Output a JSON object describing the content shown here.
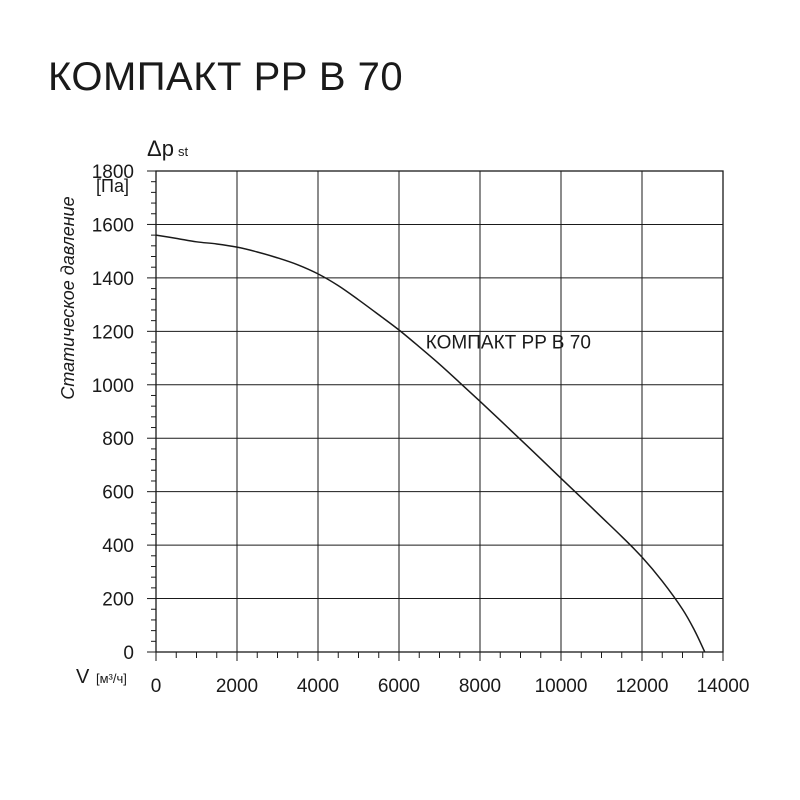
{
  "title": "КОМПАКТ PP B 70",
  "chart_data": {
    "type": "line",
    "title": "КОМПАКТ PP B 70",
    "ylabel_symbol": "Δp",
    "ylabel_subscript": "st",
    "ylabel_unit": "[Па]",
    "ylabel_rotated": "Статическое давление",
    "xlabel_symbol": "V",
    "xlabel_unit": "[м³/ч]",
    "xlim": [
      0,
      14000
    ],
    "ylim": [
      0,
      1800
    ],
    "grid": true,
    "x_ticks": [
      0,
      2000,
      4000,
      6000,
      8000,
      10000,
      12000,
      14000
    ],
    "y_ticks": [
      0,
      200,
      400,
      600,
      800,
      1000,
      1200,
      1400,
      1600,
      1800
    ],
    "x_tick_labels": [
      "0",
      "2000",
      "4000",
      "6000",
      "8000",
      "10000",
      "12000",
      "14000"
    ],
    "y_tick_labels": [
      "0",
      "200",
      "400",
      "600",
      "800",
      "1000",
      "1200",
      "1400",
      "1600",
      "1800"
    ],
    "series": [
      {
        "name": "КОМПАКТ PP B 70",
        "x": [
          0,
          500,
          1000,
          1500,
          2000,
          2500,
          3000,
          3500,
          4000,
          4500,
          5000,
          5500,
          6000,
          6500,
          7000,
          7500,
          8000,
          8500,
          9000,
          9500,
          10000,
          10500,
          11000,
          11500,
          12000,
          12500,
          13000,
          13300,
          13550
        ],
        "y": [
          1560,
          1548,
          1535,
          1527,
          1515,
          1497,
          1475,
          1449,
          1415,
          1371,
          1318,
          1262,
          1205,
          1142,
          1077,
          1008,
          938,
          867,
          795,
          723,
          650,
          578,
          505,
          432,
          355,
          265,
          160,
          80,
          0
        ]
      }
    ],
    "annotations": [
      {
        "text": "КОМПАКТ PP B 70",
        "x": 8700,
        "y": 1135
      }
    ]
  }
}
